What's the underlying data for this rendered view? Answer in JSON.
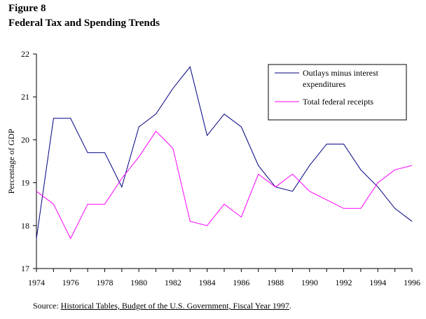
{
  "figure": {
    "label": "Figure 8",
    "title": "Federal Tax and Spending Trends"
  },
  "source": {
    "prefix": "Source: ",
    "link_text": "Historical Tables, Budget of the U.S. Government, Fiscal Year 1997",
    "suffix": "."
  },
  "chart_data": {
    "type": "line",
    "ylabel": "Percentage of GDP",
    "xlabel": "",
    "ylim": [
      17,
      22
    ],
    "xlim": [
      1974,
      1996
    ],
    "yticks": [
      17,
      18,
      19,
      20,
      21,
      22
    ],
    "xticks": [
      1974,
      1976,
      1978,
      1980,
      1982,
      1984,
      1986,
      1988,
      1990,
      1992,
      1994,
      1996
    ],
    "grid": false,
    "legend_position": "top-right",
    "x": [
      1974,
      1975,
      1976,
      1977,
      1978,
      1979,
      1980,
      1981,
      1982,
      1983,
      1984,
      1985,
      1986,
      1987,
      1988,
      1989,
      1990,
      1991,
      1992,
      1993,
      1994,
      1995,
      1996
    ],
    "series": [
      {
        "name_line1": "Outlays minus interest",
        "name_line2": "expenditures",
        "color": "#000080",
        "values": [
          17.7,
          20.5,
          20.5,
          19.7,
          19.7,
          18.9,
          20.3,
          20.6,
          21.2,
          21.7,
          20.1,
          20.6,
          20.3,
          19.4,
          18.9,
          18.8,
          19.4,
          19.9,
          19.9,
          19.3,
          18.9,
          18.4,
          18.1
        ]
      },
      {
        "name_line1": "Total federal receipts",
        "name_line2": "",
        "color": "#ff00ff",
        "values": [
          18.8,
          18.5,
          17.7,
          18.5,
          18.5,
          19.1,
          19.6,
          20.2,
          19.8,
          18.1,
          18.0,
          18.5,
          18.2,
          19.2,
          18.9,
          19.2,
          18.8,
          18.6,
          18.4,
          18.4,
          19.0,
          19.3,
          19.4
        ]
      }
    ]
  }
}
